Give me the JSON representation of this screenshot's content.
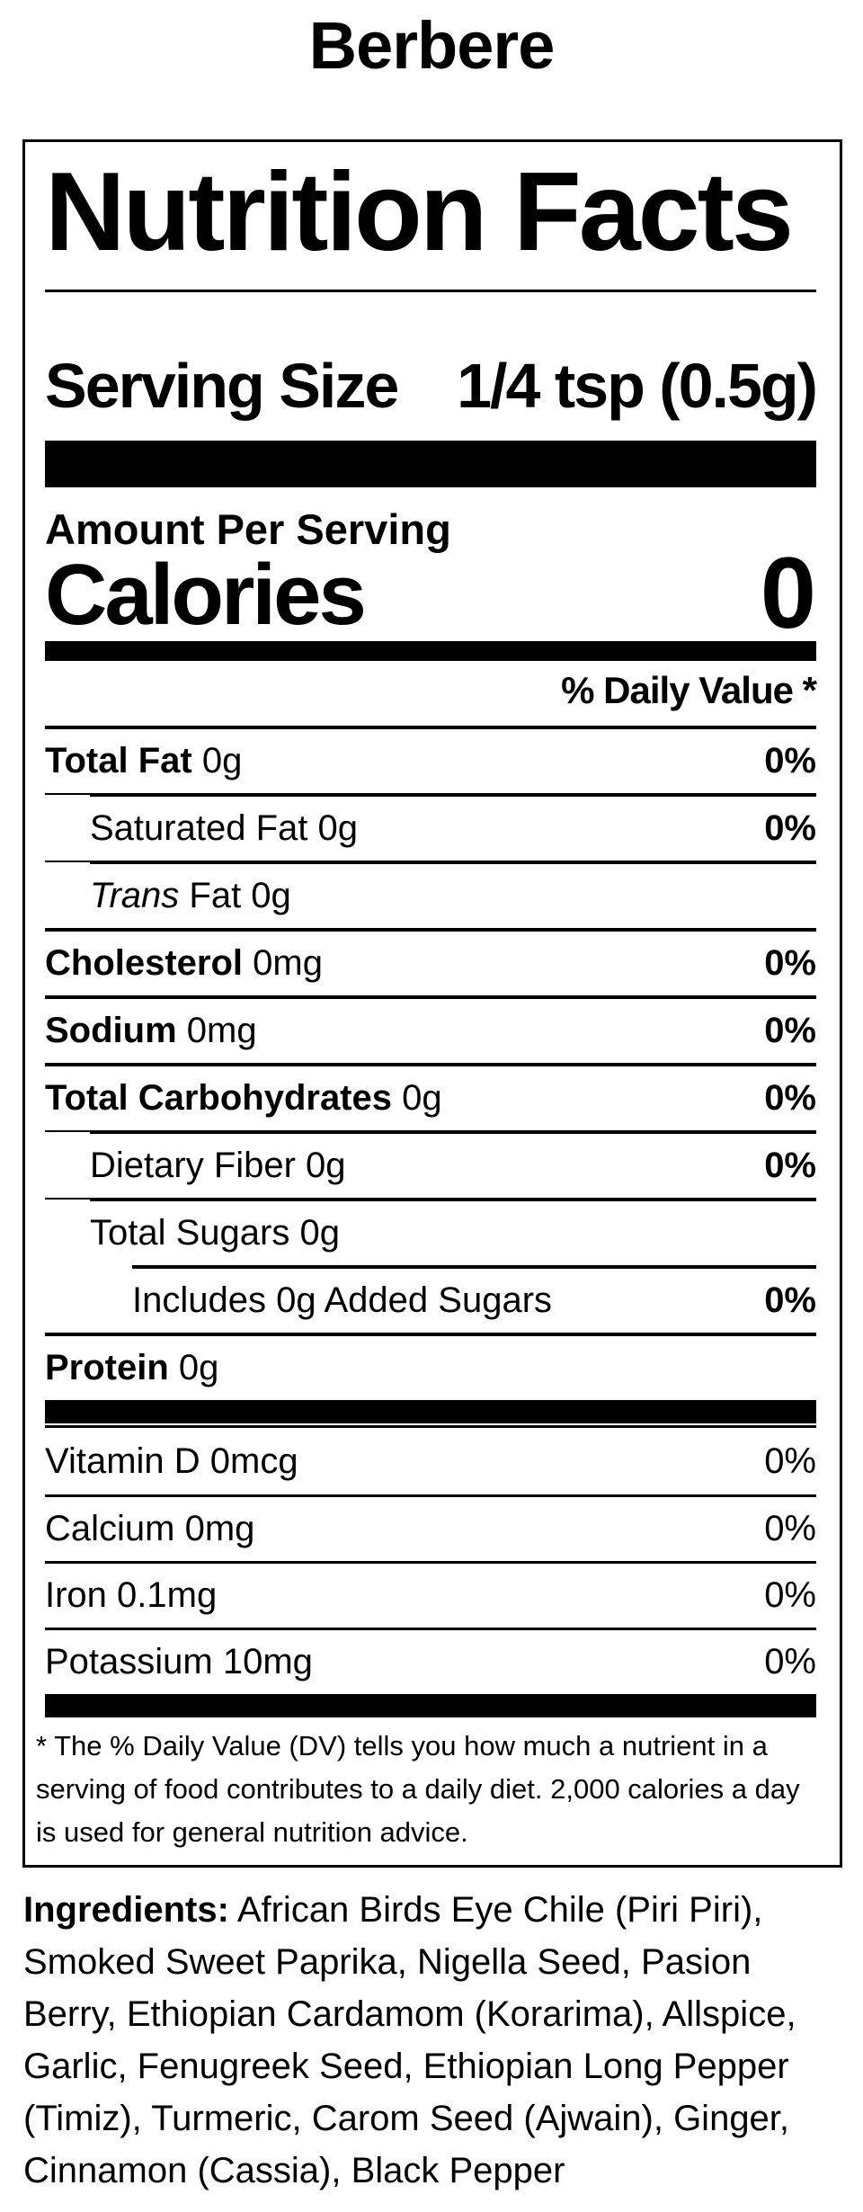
{
  "page_title": "Berbere",
  "label": {
    "header": "Nutrition Facts",
    "serving": {
      "label": "Serving Size",
      "value": "1/4 tsp (0.5g)"
    },
    "amount_per_serving": "Amount Per Serving",
    "calories": {
      "label": "Calories",
      "value": "0"
    },
    "daily_value_header": "% Daily Value *",
    "nutrient_rows": [
      {
        "label": "Total Fat",
        "value": "0g",
        "percent": "0%",
        "bold_label": true,
        "percent_bold": true,
        "indent": 0
      },
      {
        "label": "Saturated Fat",
        "value": "0g",
        "percent": "0%",
        "bold_label": false,
        "percent_bold": true,
        "indent": 1
      },
      {
        "italic_prefix": "Trans",
        "label": "Fat",
        "value": "0g",
        "percent": "",
        "bold_label": false,
        "percent_bold": false,
        "indent": 1
      },
      {
        "label": "Cholesterol",
        "value": "0mg",
        "percent": "0%",
        "bold_label": true,
        "percent_bold": true,
        "indent": 0
      },
      {
        "label": "Sodium",
        "value": "0mg",
        "percent": "0%",
        "bold_label": true,
        "percent_bold": true,
        "indent": 0
      },
      {
        "label": "Total Carbohydrates",
        "value": "0g",
        "percent": "0%",
        "bold_label": true,
        "percent_bold": true,
        "indent": 0
      },
      {
        "label": "Dietary Fiber",
        "value": "0g",
        "percent": "0%",
        "bold_label": false,
        "percent_bold": true,
        "indent": 1
      },
      {
        "label": "Total Sugars",
        "value": "0g",
        "percent": "",
        "bold_label": false,
        "percent_bold": false,
        "indent": 1
      },
      {
        "label": "Includes 0g Added Sugars",
        "value": "",
        "percent": "0%",
        "bold_label": false,
        "percent_bold": true,
        "indent": 2
      },
      {
        "label": "Protein",
        "value": "0g",
        "percent": "",
        "bold_label": true,
        "percent_bold": false,
        "indent": 0
      }
    ],
    "vitamin_rows": [
      {
        "label": "Vitamin D 0mcg",
        "percent": "0%"
      },
      {
        "label": "Calcium 0mg",
        "percent": "0%"
      },
      {
        "label": "Iron 0.1mg",
        "percent": "0%"
      },
      {
        "label": "Potassium 10mg",
        "percent": "0%"
      }
    ],
    "footnote": "* The % Daily Value (DV) tells you how much a nutrient in a serving of food contributes to a daily diet. 2,000 calories a day is used for general nutrition advice."
  },
  "ingredients": {
    "label": "Ingredients:",
    "text": " African Birds Eye Chile (Piri Piri), Smoked Sweet Paprika, Nigella Seed, Pasion Berry, Ethiopian Cardamom (Korarima), Allspice, Garlic, Fenugreek Seed, Ethiopian Long Pepper (Timiz), Turmeric, Carom Seed (Ajwain), Ginger, Cinnamon (Cassia), Black Pepper"
  },
  "colors": {
    "text": "#000000",
    "background": "#ffffff"
  }
}
